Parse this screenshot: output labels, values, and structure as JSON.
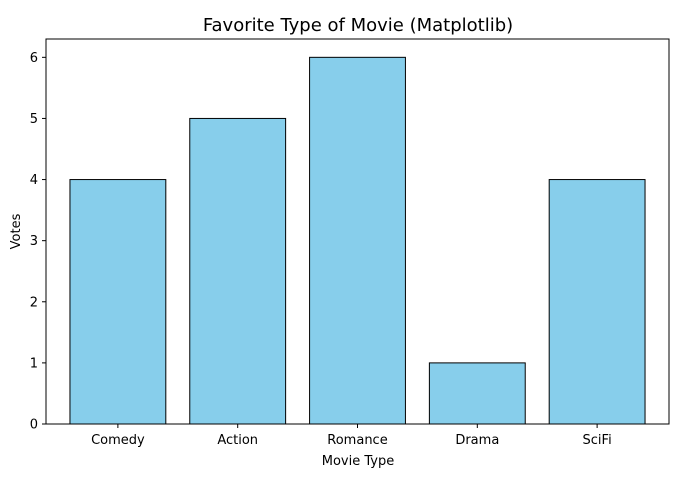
{
  "chart_data": {
    "type": "bar",
    "title": "Favorite Type of Movie (Matplotlib)",
    "xlabel": "Movie Type",
    "ylabel": "Votes",
    "categories": [
      "Comedy",
      "Action",
      "Romance",
      "Drama",
      "SciFi"
    ],
    "values": [
      4,
      5,
      6,
      1,
      4
    ],
    "ylim": [
      0,
      6.3
    ],
    "yticks": [
      0,
      1,
      2,
      3,
      4,
      5,
      6
    ],
    "grid": false,
    "legend": "none",
    "bar_color": "#87CEEB",
    "bar_edge_color": "#000000"
  }
}
